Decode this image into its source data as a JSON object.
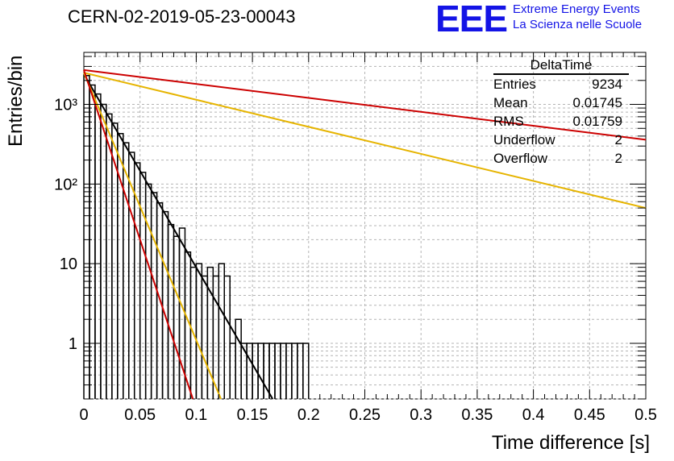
{
  "run_title": "CERN-02-2019-05-23-00043",
  "logo": {
    "mark": "EEE",
    "line1": "Extreme Energy Events",
    "line2": "La Scienza nelle Scuole",
    "color": "#1414e6"
  },
  "stats": {
    "name": "DeltaTime",
    "rows": [
      {
        "label": "Entries",
        "value": "9234"
      },
      {
        "label": "Mean",
        "value": "0.01745"
      },
      {
        "label": "RMS",
        "value": "0.01759"
      },
      {
        "label": "Underflow",
        "value": "2"
      },
      {
        "label": "Overflow",
        "value": "2"
      }
    ]
  },
  "chart_data": {
    "type": "histogram",
    "xlabel": "Time difference [s]",
    "ylabel": "Entries/bin",
    "xlim": [
      0,
      0.5
    ],
    "ylim": [
      0.2,
      4500
    ],
    "yscale": "log",
    "grid": true,
    "x_ticks": [
      "0",
      "0.05",
      "0.1",
      "0.15",
      "0.2",
      "0.25",
      "0.3",
      "0.35",
      "0.4",
      "0.45",
      "0.5"
    ],
    "y_ticks": [
      "1",
      "10",
      "10²",
      "10³"
    ],
    "bin_width": 0.005,
    "histogram": [
      {
        "x0": 0.0,
        "count": 2300
      },
      {
        "x0": 0.005,
        "count": 1750
      },
      {
        "x0": 0.01,
        "count": 1350
      },
      {
        "x0": 0.015,
        "count": 1000
      },
      {
        "x0": 0.02,
        "count": 760
      },
      {
        "x0": 0.025,
        "count": 580
      },
      {
        "x0": 0.03,
        "count": 430
      },
      {
        "x0": 0.035,
        "count": 330
      },
      {
        "x0": 0.04,
        "count": 250
      },
      {
        "x0": 0.045,
        "count": 185
      },
      {
        "x0": 0.05,
        "count": 140
      },
      {
        "x0": 0.055,
        "count": 100
      },
      {
        "x0": 0.06,
        "count": 78
      },
      {
        "x0": 0.065,
        "count": 58
      },
      {
        "x0": 0.07,
        "count": 45
      },
      {
        "x0": 0.075,
        "count": 31
      },
      {
        "x0": 0.08,
        "count": 22
      },
      {
        "x0": 0.085,
        "count": 28
      },
      {
        "x0": 0.09,
        "count": 14
      },
      {
        "x0": 0.095,
        "count": 9
      },
      {
        "x0": 0.1,
        "count": 10
      },
      {
        "x0": 0.105,
        "count": 7
      },
      {
        "x0": 0.11,
        "count": 9
      },
      {
        "x0": 0.115,
        "count": 7
      },
      {
        "x0": 0.12,
        "count": 10
      },
      {
        "x0": 0.125,
        "count": 7
      },
      {
        "x0": 0.13,
        "count": 1
      },
      {
        "x0": 0.135,
        "count": 2
      },
      {
        "x0": 0.14,
        "count": 1
      },
      {
        "x0": 0.145,
        "count": 1
      },
      {
        "x0": 0.15,
        "count": 1
      },
      {
        "x0": 0.155,
        "count": 1
      },
      {
        "x0": 0.16,
        "count": 1
      },
      {
        "x0": 0.165,
        "count": 1
      },
      {
        "x0": 0.17,
        "count": 1
      },
      {
        "x0": 0.175,
        "count": 1
      },
      {
        "x0": 0.18,
        "count": 1
      },
      {
        "x0": 0.185,
        "count": 1
      },
      {
        "x0": 0.19,
        "count": 1
      },
      {
        "x0": 0.195,
        "count": 1
      }
    ],
    "fit_lines": [
      {
        "color": "#000000",
        "x": [
          0.0,
          0.168
        ],
        "y": [
          2400,
          0.2
        ]
      },
      {
        "color": "#e6b400",
        "x": [
          0.0,
          0.5
        ],
        "y": [
          2500,
          50
        ]
      },
      {
        "color": "#e6b400",
        "x": [
          0.0,
          0.122
        ],
        "y": [
          2500,
          0.2
        ]
      },
      {
        "color": "#cc0000",
        "x": [
          0.0,
          0.5
        ],
        "y": [
          2700,
          360
        ]
      },
      {
        "color": "#cc0000",
        "x": [
          0.0,
          0.097
        ],
        "y": [
          2700,
          0.2
        ]
      }
    ]
  }
}
